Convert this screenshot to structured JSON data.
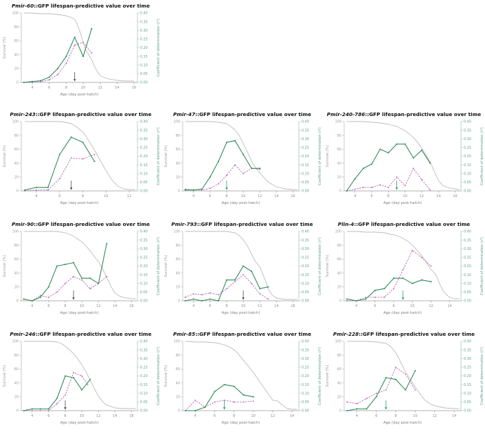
{
  "common": {
    "title_suffix": "::GFP lifespan-predictive value over time",
    "xlabel": "Age (day post-hatch)",
    "ylabel_left": "Survival (%)",
    "ylabel_right": "Coefficient of determination (r²)",
    "ylim_left": [
      0,
      100
    ],
    "ylim_right": [
      0,
      0.4
    ],
    "yticks_left": [
      0,
      20,
      40,
      60,
      80,
      100
    ],
    "yticks_right": [
      0,
      0.05,
      0.1,
      0.15,
      0.2,
      0.25,
      0.3,
      0.35,
      0.4
    ],
    "grid": "off",
    "legend": "none",
    "colors": {
      "survival_line": "#bcbcbc",
      "r2_solid_line": "#2e8b57",
      "r2_dashed_line": "#b55cb0",
      "left_axis_text": "#9a9a9a",
      "right_axis_text": "#5aa287",
      "x_axis_text": "#8a8a8a",
      "arrow_dark": "#4d4d4d",
      "arrow_green": "#2e9e77",
      "title_text": "#111111"
    }
  },
  "chart_data": [
    {
      "type": "line",
      "gene": "Pmir-60",
      "xlim": [
        2.7,
        16.4
      ],
      "xticks": [
        4,
        6,
        8,
        10,
        12,
        14,
        16
      ],
      "arrow": {
        "x": 9,
        "color": "dark"
      },
      "series": {
        "survival": {
          "x": [
            3,
            4,
            5,
            6,
            7,
            8,
            8.5,
            9,
            9.3,
            9.7,
            10,
            10.3,
            10.7,
            11,
            11.3,
            11.7,
            12,
            12.5,
            13,
            14,
            15,
            16
          ],
          "y": [
            100,
            100,
            99,
            99,
            98,
            96,
            94,
            91,
            84,
            70,
            57,
            47,
            39,
            33,
            24,
            15,
            10,
            7,
            5,
            3,
            2,
            2
          ]
        },
        "r2_solid": {
          "x": [
            3,
            4,
            5,
            6,
            7,
            8,
            9,
            10,
            11
          ],
          "y": [
            0,
            0.005,
            0.01,
            0.03,
            0.08,
            0.15,
            0.26,
            0.15,
            0.31
          ]
        },
        "r2_dashed": {
          "x": [
            3,
            4,
            5,
            6,
            7,
            8,
            9,
            10,
            11
          ],
          "y": [
            0,
            0,
            0.005,
            0.015,
            0.045,
            0.11,
            0.215,
            0.23,
            0.17
          ]
        }
      }
    },
    {
      "type": "line",
      "gene": "Pmir-243",
      "xlim": [
        2.7,
        12.7
      ],
      "xticks": [
        4,
        6,
        8,
        10,
        12
      ],
      "arrow": {
        "x": 7,
        "color": "dark"
      },
      "series": {
        "survival": {
          "x": [
            3,
            4,
            5,
            6,
            6.5,
            7,
            7.5,
            8,
            8.5,
            9,
            9.5,
            10,
            10.5,
            11,
            11.5,
            12,
            12.5
          ],
          "y": [
            100,
            100,
            100,
            100,
            99,
            97,
            92,
            85,
            73,
            59,
            44,
            29,
            16,
            7,
            3,
            2,
            2
          ]
        },
        "r2_solid": {
          "x": [
            3,
            4,
            5,
            6,
            7,
            8,
            9
          ],
          "y": [
            0.005,
            0.02,
            0.02,
            0.21,
            0.31,
            0.28,
            0.17
          ]
        },
        "r2_dashed": {
          "x": [
            3,
            4,
            5,
            6,
            7,
            8,
            9
          ],
          "y": [
            0,
            0.005,
            0.005,
            0.07,
            0.19,
            0.185,
            0.21
          ]
        }
      }
    },
    {
      "type": "line",
      "gene": "Pmir-47",
      "xlim": [
        2.7,
        16.7
      ],
      "xticks": [
        4,
        6,
        8,
        10,
        12,
        14,
        16
      ],
      "arrow": {
        "x": 8,
        "color": "green"
      },
      "series": {
        "survival": {
          "x": [
            3,
            5,
            6,
            7,
            8,
            8.5,
            9,
            9.5,
            10,
            10.5,
            11,
            11.5,
            12,
            12.5,
            13,
            13.5,
            14,
            15,
            16,
            16.5
          ],
          "y": [
            100,
            100,
            100,
            99,
            97,
            93,
            88,
            80,
            68,
            56,
            43,
            33,
            26,
            19,
            13,
            9,
            6,
            3,
            2,
            2
          ]
        },
        "r2_solid": {
          "x": [
            3,
            4,
            5,
            6,
            7,
            8,
            9,
            10,
            11,
            12
          ],
          "y": [
            0.005,
            0.005,
            0.01,
            0.08,
            0.17,
            0.28,
            0.29,
            0.21,
            0.13,
            0.13
          ]
        },
        "r2_dashed": {
          "x": [
            3,
            4,
            5,
            6,
            7,
            8,
            9,
            10,
            11,
            12
          ],
          "y": [
            0.01,
            0.005,
            0.005,
            0.015,
            0.04,
            0.09,
            0.15,
            0.1,
            0.13,
            0.125
          ]
        }
      }
    },
    {
      "type": "line",
      "gene": "Pmir-240-786",
      "xlim": [
        2.7,
        16.7
      ],
      "xticks": [
        4,
        6,
        8,
        10,
        12,
        14,
        16
      ],
      "arrow": {
        "x": 9,
        "color": "green"
      },
      "series": {
        "survival": {
          "x": [
            3,
            4,
            5,
            6,
            7,
            8,
            9,
            9.5,
            10,
            10.5,
            11,
            11.5,
            12,
            12.5,
            13,
            13.5,
            14,
            14.5,
            15,
            16,
            16.5
          ],
          "y": [
            100,
            100,
            100,
            99,
            98,
            96,
            93,
            90,
            87,
            82,
            77,
            70,
            62,
            52,
            42,
            28,
            15,
            8,
            5,
            3,
            2
          ]
        },
        "r2_solid": {
          "x": [
            3,
            4,
            5,
            6,
            7,
            8,
            9,
            10,
            11,
            12,
            13
          ],
          "y": [
            0,
            0.07,
            0.13,
            0.155,
            0.24,
            0.22,
            0.27,
            0.27,
            0.19,
            0.235,
            0.16
          ]
        },
        "r2_dashed": {
          "x": [
            3,
            4,
            5,
            6,
            7,
            8,
            9,
            10,
            11,
            12,
            13
          ],
          "y": [
            0,
            0.01,
            0.02,
            0.02,
            0.035,
            0.02,
            0.08,
            0.03,
            0.13,
            0.065,
            0.005
          ]
        }
      }
    },
    {
      "type": "line",
      "gene": "Pmir-90",
      "xlim": [
        2.7,
        16.7
      ],
      "xticks": [
        4,
        6,
        8,
        10,
        12,
        14,
        16
      ],
      "arrow": {
        "x": 9,
        "color": "dark"
      },
      "series": {
        "survival": {
          "x": [
            3,
            5,
            7,
            8,
            8.5,
            9,
            9.5,
            10,
            10.5,
            11,
            11.5,
            12,
            12.5,
            13,
            13.5,
            14,
            14.5,
            15,
            16,
            16.5
          ],
          "y": [
            100,
            100,
            100,
            98,
            96,
            93,
            89,
            85,
            79,
            72,
            64,
            56,
            46,
            34,
            21,
            11,
            7,
            5,
            3,
            3
          ]
        },
        "r2_solid": {
          "x": [
            3,
            4,
            5,
            6,
            7,
            8,
            9,
            10,
            11,
            12,
            13
          ],
          "y": [
            0.01,
            0,
            0.02,
            0.08,
            0.2,
            0.21,
            0.22,
            0.13,
            0.13,
            0.1,
            0.33
          ]
        },
        "r2_dashed": {
          "x": [
            3,
            4,
            5,
            6,
            7,
            8,
            9,
            10,
            11,
            12,
            13
          ],
          "y": [
            0.01,
            0,
            0.03,
            0.02,
            0.05,
            0.1,
            0.14,
            0.12,
            0.07,
            0.1,
            0.14
          ]
        }
      }
    },
    {
      "type": "line",
      "gene": "Pmir-793",
      "xlim": [
        2.7,
        16.7
      ],
      "xticks": [
        4,
        6,
        8,
        10,
        12,
        14,
        16
      ],
      "arrow": {
        "x": 10,
        "color": "dark"
      },
      "series": {
        "survival": {
          "x": [
            3,
            6,
            8,
            9,
            9.5,
            10,
            10.5,
            11,
            11.5,
            12,
            12.3,
            12.7,
            13,
            13.5,
            14,
            15,
            16,
            16.5
          ],
          "y": [
            100,
            100,
            100,
            98,
            94,
            88,
            79,
            67,
            56,
            49,
            40,
            28,
            17,
            8,
            4,
            2,
            2,
            2
          ]
        },
        "r2_solid": {
          "x": [
            3,
            4,
            5,
            6,
            7,
            8,
            9,
            10,
            11,
            12,
            13
          ],
          "y": [
            0,
            0.01,
            0,
            0.01,
            0,
            0.12,
            0.12,
            0.2,
            0.17,
            0.07,
            0.08
          ]
        },
        "r2_dashed": {
          "x": [
            3,
            4,
            5,
            6,
            7,
            8,
            9,
            10,
            11,
            12,
            13
          ],
          "y": [
            0.02,
            0.04,
            0.035,
            0.045,
            0.035,
            0.07,
            0.11,
            0.15,
            0.1,
            0.04,
            0.01
          ]
        }
      }
    },
    {
      "type": "line",
      "gene": "Plin-4",
      "xlim": [
        2.7,
        15.2
      ],
      "xticks": [
        4,
        6,
        8,
        10,
        12,
        14
      ],
      "arrow": {
        "x": 9,
        "color": "green"
      },
      "series": {
        "survival": {
          "x": [
            3,
            4,
            5,
            6,
            7,
            8,
            8.5,
            9,
            9.5,
            10,
            10.5,
            11,
            11.5,
            12,
            12.5,
            13,
            13.3,
            13.7,
            14,
            14.5,
            15
          ],
          "y": [
            100,
            100,
            99,
            99,
            98,
            95,
            93,
            90,
            86,
            80,
            73,
            65,
            55,
            45,
            38,
            22,
            14,
            8,
            5,
            3,
            3
          ]
        },
        "r2_solid": {
          "x": [
            3,
            4,
            5,
            6,
            7,
            8,
            9,
            10,
            11,
            12
          ],
          "y": [
            0.01,
            0,
            0.01,
            0.06,
            0.07,
            0.13,
            0.13,
            0.1,
            0.12,
            0.11
          ]
        },
        "r2_dashed": {
          "x": [
            3,
            4,
            5,
            6,
            7,
            8,
            9,
            10,
            11,
            12
          ],
          "y": [
            0,
            0,
            0.02,
            0.02,
            0.02,
            0.07,
            0.18,
            0.29,
            0.25,
            0.2
          ]
        }
      }
    },
    {
      "type": "line",
      "gene": "Pmir-246",
      "xlim": [
        2.7,
        16.7
      ],
      "xticks": [
        4,
        6,
        8,
        10,
        12,
        14,
        16
      ],
      "arrow": {
        "x": 8,
        "color": "dark"
      },
      "series": {
        "survival": {
          "x": [
            3,
            5,
            6,
            7,
            7.5,
            8,
            8.5,
            9,
            9.5,
            10,
            10.5,
            11,
            11.5,
            12,
            12.5,
            13,
            13.5,
            14,
            15,
            16,
            16.5
          ],
          "y": [
            100,
            100,
            100,
            99,
            97,
            93,
            88,
            82,
            75,
            66,
            56,
            44,
            32,
            21,
            13,
            8,
            6,
            4,
            3,
            3,
            3
          ]
        },
        "r2_solid": {
          "x": [
            3,
            4,
            5,
            6,
            7,
            8,
            9,
            10,
            11
          ],
          "y": [
            0,
            0.01,
            0.01,
            0.01,
            0.07,
            0.2,
            0.19,
            0.12,
            0.18
          ]
        },
        "r2_dashed": {
          "x": [
            3,
            4,
            5,
            6,
            7,
            8,
            9,
            10,
            10.7
          ],
          "y": [
            0,
            0,
            0,
            0,
            0.04,
            0.09,
            0.22,
            0.2,
            0.15
          ]
        }
      }
    },
    {
      "type": "line",
      "gene": "Pmir-85",
      "xlim": [
        2.7,
        14.7
      ],
      "xticks": [
        4,
        6,
        8,
        10,
        12,
        14
      ],
      "arrow": {
        "x": 7,
        "color": "green"
      },
      "series": {
        "survival": {
          "x": [
            3,
            4,
            5,
            6,
            7,
            7.5,
            8,
            8.5,
            9,
            9.5,
            10,
            10.5,
            11,
            11.5,
            12,
            12.5,
            13,
            13.5,
            14,
            14.5
          ],
          "y": [
            100,
            99,
            99,
            98,
            95,
            92,
            88,
            81,
            72,
            64,
            55,
            45,
            35,
            25,
            15,
            14,
            8,
            3,
            2,
            2
          ]
        },
        "r2_solid": {
          "x": [
            3,
            4,
            5,
            6,
            7,
            8,
            9,
            10
          ],
          "y": [
            0,
            0,
            0.02,
            0.11,
            0.15,
            0.14,
            0.09,
            0.08
          ]
        },
        "r2_dashed": {
          "x": [
            3,
            4,
            5,
            6,
            7,
            8,
            9,
            10
          ],
          "y": [
            0,
            0.06,
            0.02,
            0.05,
            0.06,
            0.05,
            0.05,
            0.055
          ]
        }
      }
    },
    {
      "type": "line",
      "gene": "Pmir-228",
      "xlim": [
        2.7,
        14.7
      ],
      "xticks": [
        4,
        6,
        8,
        10,
        12,
        14
      ],
      "arrow": {
        "x": 7,
        "color": "green"
      },
      "series": {
        "survival": {
          "x": [
            3,
            4,
            5,
            6,
            6.5,
            7,
            7.5,
            8,
            8.5,
            9,
            9.5,
            10,
            10.5,
            11,
            11.5,
            12,
            13,
            14,
            14.5
          ],
          "y": [
            100,
            100,
            100,
            99,
            98,
            97,
            92,
            84,
            70,
            56,
            45,
            34,
            24,
            15,
            10,
            7,
            4,
            3,
            3
          ]
        },
        "r2_solid": {
          "x": [
            3,
            4,
            5,
            6,
            7,
            8,
            9,
            10
          ],
          "y": [
            0,
            0.01,
            0.01,
            0.08,
            0.19,
            0.18,
            0.12,
            0.23
          ]
        },
        "r2_dashed": {
          "x": [
            3,
            4,
            5,
            6,
            7,
            8,
            9,
            10
          ],
          "y": [
            0.05,
            0.04,
            0.07,
            0.1,
            0.12,
            0.25,
            0.21,
            0.12
          ]
        }
      }
    }
  ]
}
